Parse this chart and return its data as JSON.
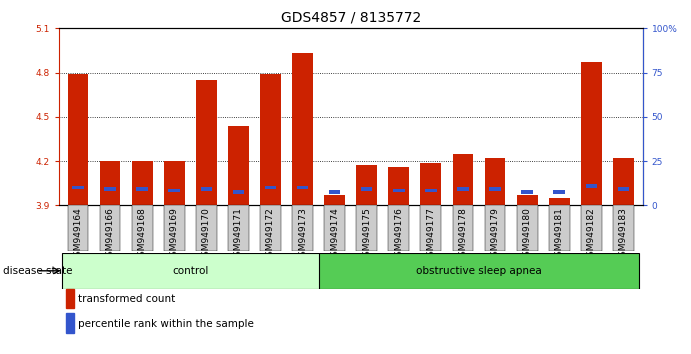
{
  "title": "GDS4857 / 8135772",
  "samples": [
    "GSM949164",
    "GSM949166",
    "GSM949168",
    "GSM949169",
    "GSM949170",
    "GSM949171",
    "GSM949172",
    "GSM949173",
    "GSM949174",
    "GSM949175",
    "GSM949176",
    "GSM949177",
    "GSM949178",
    "GSM949179",
    "GSM949180",
    "GSM949181",
    "GSM949182",
    "GSM949183"
  ],
  "red_values": [
    4.79,
    4.2,
    4.2,
    4.2,
    4.75,
    4.44,
    4.79,
    4.93,
    3.97,
    4.17,
    4.16,
    4.19,
    4.25,
    4.22,
    3.97,
    3.95,
    4.87,
    4.22
  ],
  "blue_segment_top": [
    4.02,
    4.01,
    4.01,
    4.0,
    4.01,
    3.99,
    4.02,
    4.02,
    3.99,
    4.01,
    4.0,
    4.0,
    4.01,
    4.01,
    3.99,
    3.99,
    4.03,
    4.01
  ],
  "ymin": 3.9,
  "ymax": 5.1,
  "yright_min": 0,
  "yright_max": 100,
  "yticks_left": [
    3.9,
    4.2,
    4.5,
    4.8,
    5.1
  ],
  "yticks_right": [
    0,
    25,
    50,
    75,
    100
  ],
  "yticks_right_labels": [
    "0",
    "25",
    "50",
    "75",
    "100%"
  ],
  "bar_color_red": "#cc2200",
  "bar_color_blue": "#3355cc",
  "control_count": 8,
  "apnea_count": 10,
  "control_label": "control",
  "apnea_label": "obstructive sleep apnea",
  "group_label": "disease state",
  "legend_red": "transformed count",
  "legend_blue": "percentile rank within the sample",
  "control_color": "#ccffcc",
  "apnea_color": "#55cc55",
  "bar_bg": "#cccccc",
  "title_fontsize": 10,
  "tick_fontsize": 6.5,
  "label_fontsize": 7.5,
  "grid_lines": [
    4.2,
    4.5,
    4.8
  ]
}
